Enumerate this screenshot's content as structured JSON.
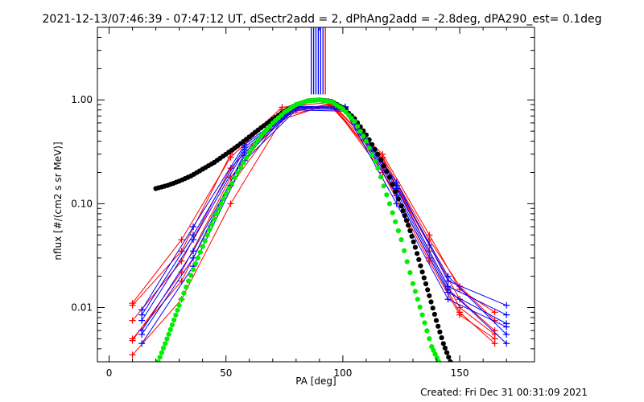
{
  "title": "2021-12-13/07:46:39 - 07:47:12 UT, dSectr2add = 2, dPhAng2add = -2.8deg, dPA290_est=  0.1deg",
  "footer": "Created: Fri Dec 31 00:31:09 2021",
  "chart_data": {
    "type": "line",
    "xlabel": "PA [deg]",
    "ylabel": "nflux [#/(cm2 s sr MeV)]",
    "xlim": [
      -5,
      182
    ],
    "ylim": [
      0.003,
      5.0
    ],
    "yscale": "log",
    "xticks": [
      0,
      50,
      100,
      150
    ],
    "xticklabels": [
      "0",
      "50",
      "100",
      "150"
    ],
    "yticks": [
      0.01,
      0.1,
      1.0
    ],
    "yticklabels": [
      "0.01",
      "0.10",
      "1.00"
    ],
    "colors": {
      "red": "#ff0000",
      "blue": "#0000ff",
      "black": "#000000",
      "green": "#00ee00"
    },
    "vertical_lines": [
      {
        "x": 86.5,
        "y0": 1.13,
        "color": "#0000ff"
      },
      {
        "x": 87.5,
        "y0": 1.13,
        "color": "#0000ff"
      },
      {
        "x": 88.5,
        "y0": 1.13,
        "color": "#0000ff"
      },
      {
        "x": 89.5,
        "y0": 1.13,
        "color": "#0000ff"
      },
      {
        "x": 90.5,
        "y0": 1.13,
        "color": "#0000ff"
      },
      {
        "x": 91.5,
        "y0": 1.13,
        "color": "#0000ff"
      },
      {
        "x": 92.5,
        "y0": 1.13,
        "color": "#ff0000"
      }
    ],
    "series": [
      {
        "color": "#ff0000",
        "marker": "plus",
        "x": [
          10,
          31,
          52,
          74,
          95,
          117,
          137,
          150,
          165
        ],
        "y": [
          0.011,
          0.045,
          0.28,
          0.8,
          0.86,
          0.25,
          0.04,
          0.012,
          0.006
        ]
      },
      {
        "color": "#ff0000",
        "marker": "plus",
        "x": [
          10,
          31,
          52,
          74,
          95,
          117,
          137,
          150,
          165
        ],
        "y": [
          0.0075,
          0.028,
          0.22,
          0.75,
          0.9,
          0.3,
          0.05,
          0.015,
          0.009
        ]
      },
      {
        "color": "#ff0000",
        "marker": "plus",
        "x": [
          10,
          31,
          52,
          74,
          95,
          117,
          137,
          150,
          165
        ],
        "y": [
          0.005,
          0.018,
          0.15,
          0.7,
          0.88,
          0.27,
          0.035,
          0.01,
          0.0055
        ]
      },
      {
        "color": "#ff0000",
        "marker": "plus",
        "x": [
          10,
          31,
          52,
          74,
          95,
          117,
          137,
          150,
          165
        ],
        "y": [
          0.0035,
          0.012,
          0.1,
          0.65,
          0.92,
          0.22,
          0.03,
          0.009,
          0.0045
        ]
      },
      {
        "color": "#ff0000",
        "marker": "plus",
        "x": [
          10,
          31,
          52,
          74,
          95,
          117,
          137,
          150,
          165
        ],
        "y": [
          0.0105,
          0.035,
          0.3,
          0.85,
          0.95,
          0.28,
          0.045,
          0.016,
          0.0075
        ]
      },
      {
        "color": "#ff0000",
        "marker": "plus",
        "x": [
          10,
          31,
          52,
          74,
          95,
          117,
          137,
          150,
          165
        ],
        "y": [
          0.0048,
          0.022,
          0.18,
          0.72,
          0.93,
          0.2,
          0.028,
          0.0085,
          0.005
        ]
      },
      {
        "color": "#0000ff",
        "marker": "plus",
        "x": [
          14,
          36,
          58,
          80,
          101,
          123,
          145,
          170
        ],
        "y": [
          0.0095,
          0.06,
          0.37,
          0.87,
          0.85,
          0.16,
          0.018,
          0.0105
        ]
      },
      {
        "color": "#0000ff",
        "marker": "plus",
        "x": [
          14,
          36,
          58,
          80,
          101,
          123,
          145,
          170
        ],
        "y": [
          0.0075,
          0.045,
          0.33,
          0.85,
          0.83,
          0.14,
          0.016,
          0.0085
        ]
      },
      {
        "color": "#0000ff",
        "marker": "plus",
        "x": [
          14,
          36,
          58,
          80,
          101,
          123,
          145,
          170
        ],
        "y": [
          0.006,
          0.035,
          0.29,
          0.83,
          0.8,
          0.12,
          0.014,
          0.007
        ]
      },
      {
        "color": "#0000ff",
        "marker": "plus",
        "x": [
          14,
          36,
          58,
          80,
          101,
          123,
          145,
          170
        ],
        "y": [
          0.0045,
          0.025,
          0.26,
          0.8,
          0.78,
          0.1,
          0.012,
          0.0065
        ]
      },
      {
        "color": "#0000ff",
        "marker": "plus",
        "x": [
          14,
          36,
          58,
          80,
          101,
          123,
          145,
          170
        ],
        "y": [
          0.0055,
          0.03,
          0.31,
          0.84,
          0.86,
          0.15,
          0.02,
          0.0055
        ]
      },
      {
        "color": "#0000ff",
        "marker": "plus",
        "x": [
          14,
          36,
          58,
          80,
          101,
          123,
          145,
          170
        ],
        "y": [
          0.0085,
          0.05,
          0.35,
          0.86,
          0.82,
          0.13,
          0.015,
          0.0045
        ]
      }
    ],
    "black_curve": {
      "color": "#000000",
      "marker": "dot",
      "x": [
        20,
        25,
        30,
        35,
        40,
        45,
        50,
        55,
        60,
        65,
        70,
        75,
        80,
        85,
        90,
        95,
        100,
        105,
        110,
        115,
        120,
        125,
        128,
        131,
        134,
        137,
        140,
        143,
        146
      ],
      "y": [
        0.14,
        0.15,
        0.165,
        0.185,
        0.215,
        0.25,
        0.3,
        0.36,
        0.44,
        0.54,
        0.65,
        0.78,
        0.9,
        0.98,
        1.0,
        0.97,
        0.84,
        0.66,
        0.46,
        0.3,
        0.18,
        0.095,
        0.062,
        0.038,
        0.022,
        0.013,
        0.0075,
        0.0045,
        0.003
      ]
    },
    "green_curve": {
      "color": "#00ee00",
      "marker": "dot",
      "x": [
        21,
        24,
        27,
        30,
        34,
        38,
        42,
        46,
        50,
        55,
        60,
        65,
        70,
        75,
        80,
        85,
        90,
        95,
        100,
        105,
        110,
        115,
        120,
        125,
        130,
        134,
        138,
        141
      ],
      "y": [
        0.003,
        0.0045,
        0.0068,
        0.0105,
        0.018,
        0.03,
        0.05,
        0.08,
        0.125,
        0.2,
        0.31,
        0.45,
        0.6,
        0.76,
        0.9,
        0.98,
        1.0,
        0.96,
        0.82,
        0.62,
        0.4,
        0.22,
        0.1,
        0.045,
        0.017,
        0.0085,
        0.0042,
        0.003
      ]
    }
  }
}
